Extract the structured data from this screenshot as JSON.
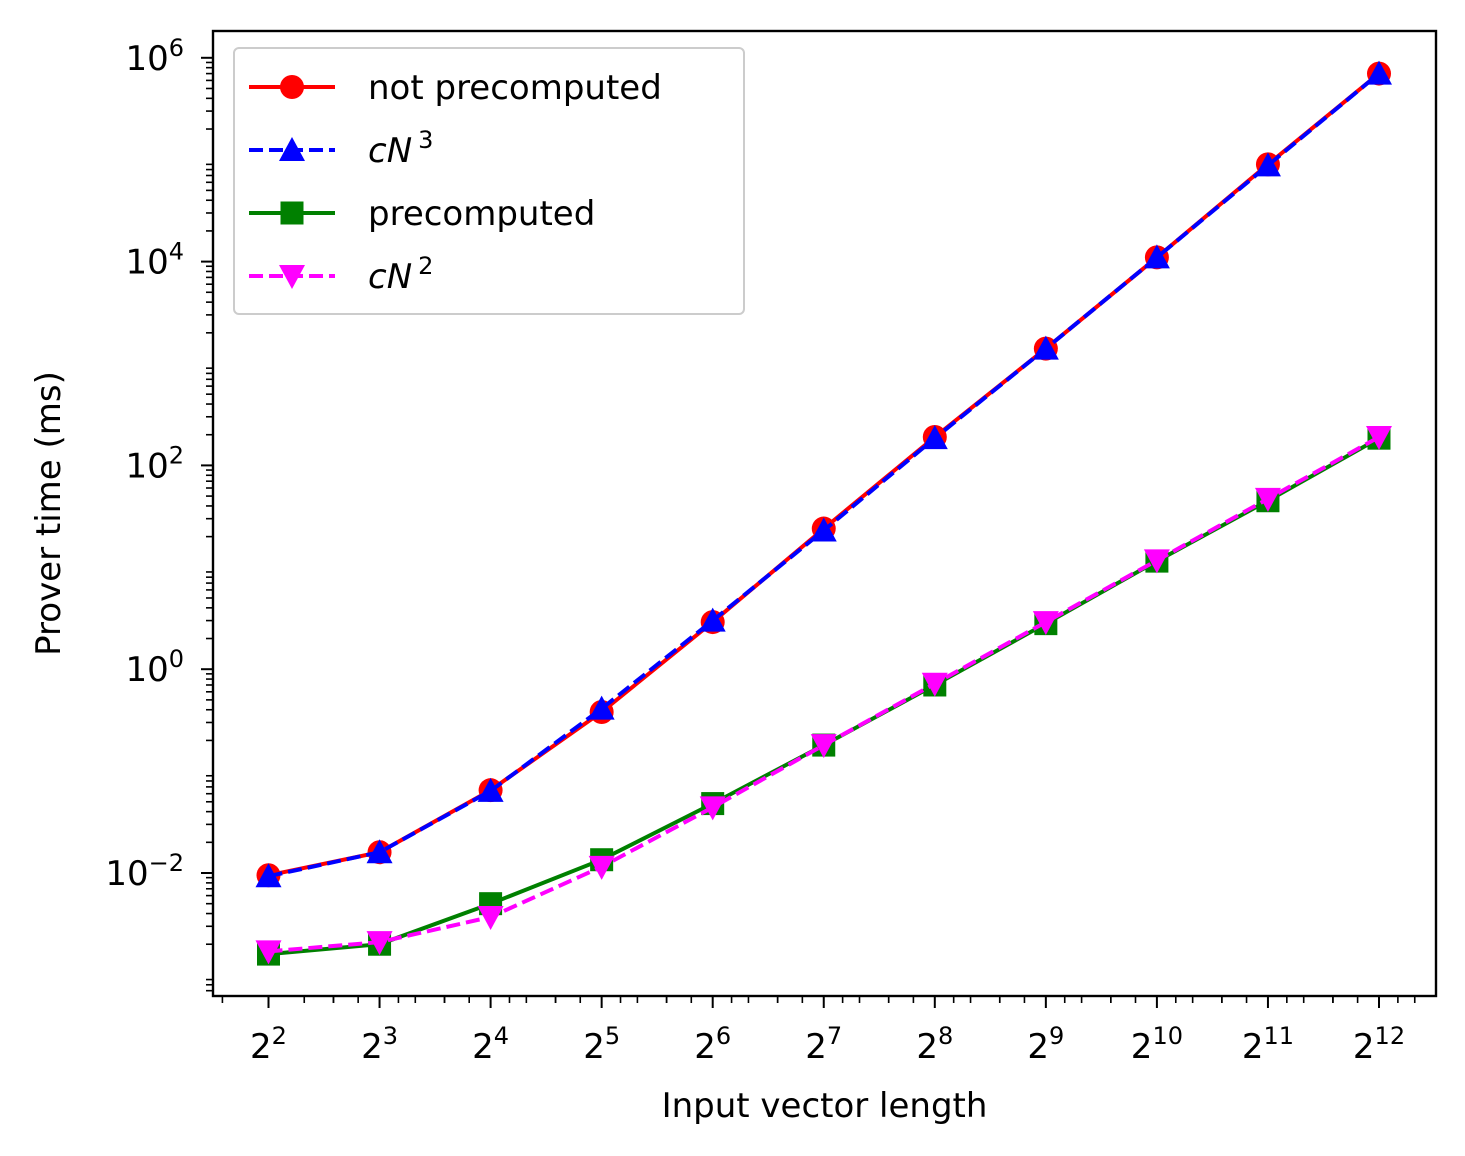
{
  "chart_data": {
    "type": "line",
    "title": "",
    "xlabel": "Input vector length",
    "ylabel": "Prover time (ms)",
    "x_scale": "log2",
    "y_scale": "log10",
    "x": [
      4,
      8,
      16,
      32,
      64,
      128,
      256,
      512,
      1024,
      2048,
      4096
    ],
    "x_tick_base": "2",
    "x_tick_exponents": [
      "2",
      "3",
      "4",
      "5",
      "6",
      "7",
      "8",
      "9",
      "10",
      "11",
      "12"
    ],
    "y_tick_base": "10",
    "y_tick_values": [
      0.01,
      1,
      100,
      10000,
      1000000
    ],
    "y_tick_exponents": [
      "−2",
      "0",
      "2",
      "4",
      "6"
    ],
    "ylim": [
      0.0006,
      2000000
    ],
    "legend_position": "upper left",
    "grid": false,
    "series": [
      {
        "name": "not precomputed",
        "italic": false,
        "color": "#ff0000",
        "dash": "solid",
        "marker": "circle",
        "values": [
          0.0095,
          0.016,
          0.065,
          0.38,
          2.9,
          24,
          190,
          1400,
          11000,
          90000,
          700000
        ]
      },
      {
        "name": "cN",
        "name_sup": "3",
        "italic": true,
        "color": "#0000ff",
        "dash": "dashed",
        "marker": "triangle-up",
        "values": [
          0.0093,
          0.016,
          0.064,
          0.41,
          3.0,
          23,
          185,
          1400,
          11000,
          88000,
          700000
        ]
      },
      {
        "name": "precomputed",
        "italic": false,
        "color": "#008000",
        "dash": "solid",
        "marker": "square",
        "values": [
          0.0016,
          0.002,
          0.005,
          0.0135,
          0.048,
          0.18,
          0.7,
          2.8,
          11.5,
          45,
          185
        ]
      },
      {
        "name": "cN",
        "name_sup": "2",
        "italic": true,
        "color": "#ff00ff",
        "dash": "dashed",
        "marker": "triangle-down",
        "values": [
          0.0017,
          0.0021,
          0.0037,
          0.0115,
          0.044,
          0.18,
          0.72,
          2.9,
          11.7,
          47,
          190
        ]
      }
    ]
  }
}
